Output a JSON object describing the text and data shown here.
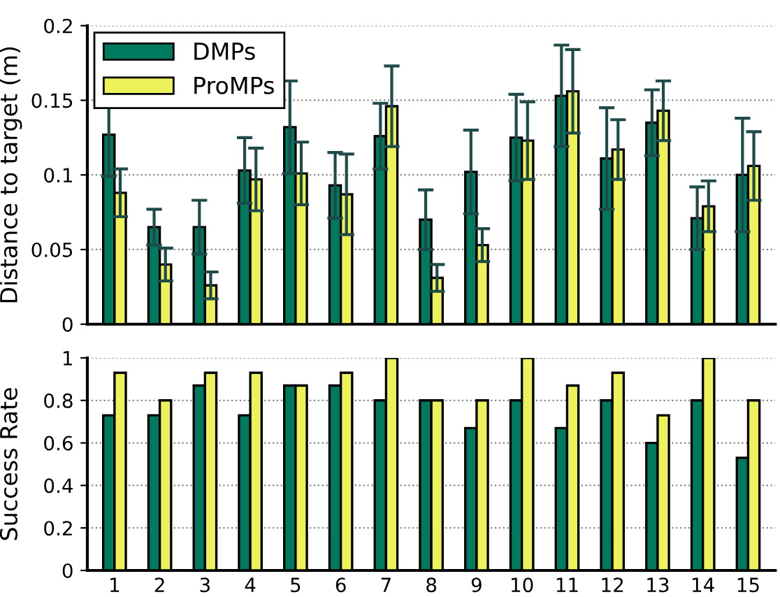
{
  "chart_data": [
    {
      "type": "bar",
      "ylabel": "Distance to target (m)",
      "categories": [
        "1",
        "2",
        "3",
        "4",
        "5",
        "6",
        "7",
        "8",
        "9",
        "10",
        "11",
        "12",
        "13",
        "14",
        "15"
      ],
      "tick_labels": "y",
      "ylim": [
        0,
        0.2
      ],
      "yticks": [
        0,
        0.05,
        0.1,
        0.15,
        0.2
      ],
      "grid": "y",
      "legend": "top left",
      "series": [
        {
          "name": "DMPs",
          "color": "#007a5e",
          "values": [
            0.127,
            0.065,
            0.065,
            0.103,
            0.132,
            0.093,
            0.126,
            0.07,
            0.102,
            0.125,
            0.153,
            0.111,
            0.135,
            0.071,
            0.1
          ],
          "errors": [
            0.028,
            0.012,
            0.018,
            0.022,
            0.031,
            0.022,
            0.022,
            0.02,
            0.028,
            0.029,
            0.034,
            0.034,
            0.022,
            0.021,
            0.038
          ]
        },
        {
          "name": "ProMPs",
          "color": "#eef25a",
          "values": [
            0.088,
            0.04,
            0.026,
            0.097,
            0.101,
            0.087,
            0.146,
            0.031,
            0.053,
            0.123,
            0.156,
            0.117,
            0.143,
            0.079,
            0.106
          ],
          "errors": [
            0.016,
            0.011,
            0.009,
            0.021,
            0.021,
            0.027,
            0.027,
            0.009,
            0.011,
            0.026,
            0.028,
            0.02,
            0.02,
            0.017,
            0.023
          ]
        }
      ]
    },
    {
      "type": "bar",
      "ylabel": "Success Rate",
      "categories": [
        "1",
        "2",
        "3",
        "4",
        "5",
        "6",
        "7",
        "8",
        "9",
        "10",
        "11",
        "12",
        "13",
        "14",
        "15"
      ],
      "ylim": [
        0,
        1
      ],
      "yticks": [
        0,
        0.2,
        0.4,
        0.6,
        0.8,
        1
      ],
      "grid": "y",
      "series": [
        {
          "color": "#007a5e",
          "values": [
            0.73,
            0.73,
            0.87,
            0.73,
            0.87,
            0.87,
            0.8,
            0.8,
            0.67,
            0.8,
            0.67,
            0.8,
            0.6,
            0.8,
            0.53
          ]
        },
        {
          "color": "#eef25a",
          "values": [
            0.93,
            0.8,
            0.93,
            0.93,
            0.87,
            0.93,
            1,
            0.8,
            0.8,
            1,
            0.87,
            0.93,
            0.73,
            1,
            0.8
          ]
        }
      ]
    }
  ]
}
